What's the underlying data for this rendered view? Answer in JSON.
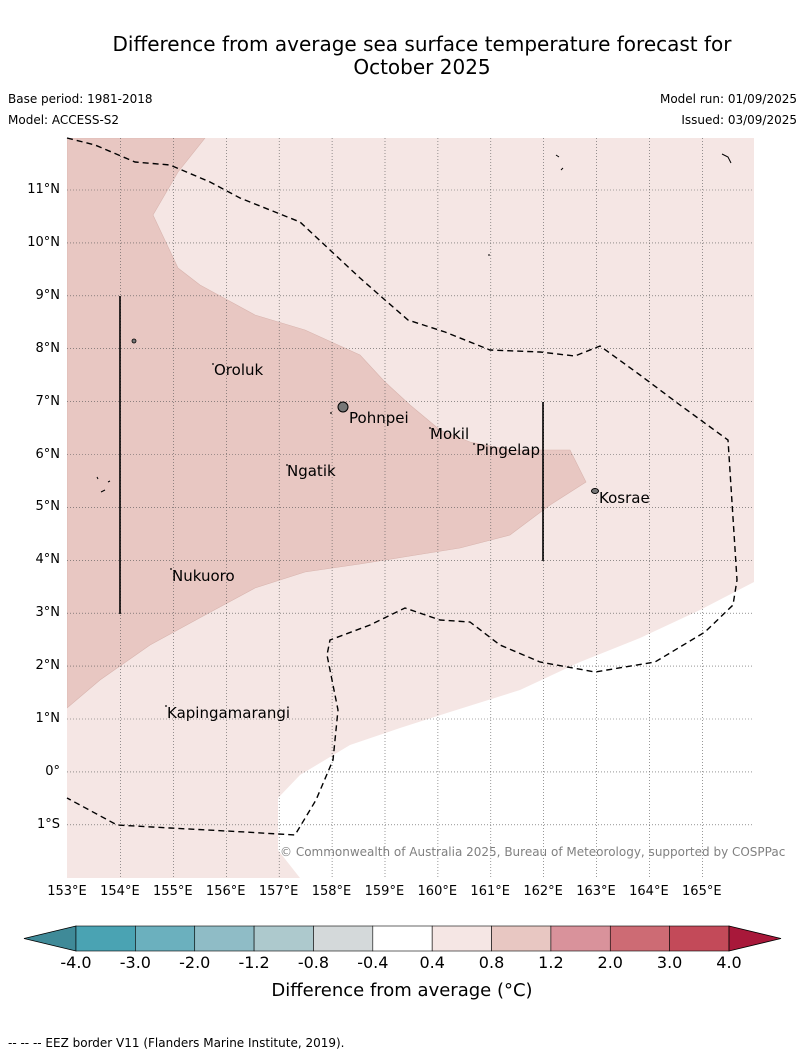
{
  "title_line1": "Difference from average sea surface temperature forecast for",
  "title_line2": "October 2025",
  "base_period": "Base period: 1981-2018",
  "model": "Model: ACCESS-S2",
  "model_run": "Model run: 01/09/2025",
  "issued": "Issued: 03/09/2025",
  "lat_labels": [
    "11°N",
    "10°N",
    "9°N",
    "8°N",
    "7°N",
    "6°N",
    "5°N",
    "4°N",
    "3°N",
    "2°N",
    "1°N",
    "0°",
    "1°S"
  ],
  "lon_labels": [
    "153°E",
    "154°E",
    "155°E",
    "156°E",
    "157°E",
    "158°E",
    "159°E",
    "160°E",
    "161°E",
    "162°E",
    "163°E",
    "164°E",
    "165°E"
  ],
  "places": [
    {
      "name": "Oroluk"
    },
    {
      "name": "Pohnpei"
    },
    {
      "name": "Mokil"
    },
    {
      "name": "Pingelap"
    },
    {
      "name": "Ngatik"
    },
    {
      "name": "Kosrae"
    },
    {
      "name": "Nukuoro"
    },
    {
      "name": "Kapingamarangi"
    }
  ],
  "copyright": "© Commonwealth of Australia 2025, Bureau of Meteorology, supported by COSPPac",
  "colorbar": {
    "ticks": [
      "-4.0",
      "-3.0",
      "-2.0",
      "-1.2",
      "-0.8",
      "-0.4",
      "0.4",
      "0.8",
      "1.2",
      "2.0",
      "3.0",
      "4.0"
    ],
    "colors": [
      "#3f8a98",
      "#4aa3b3",
      "#6bb0be",
      "#8fbcc6",
      "#adc9cd",
      "#d4d9da",
      "#ffffff",
      "#f5e6e4",
      "#e8c7c2",
      "#d9929b",
      "#cd6b74",
      "#c34a59",
      "#a8183a"
    ],
    "label": "Difference from average (°C)"
  },
  "footer": "--  --  -- EEZ border V11 (Flanders Marine Institute, 2019)."
}
